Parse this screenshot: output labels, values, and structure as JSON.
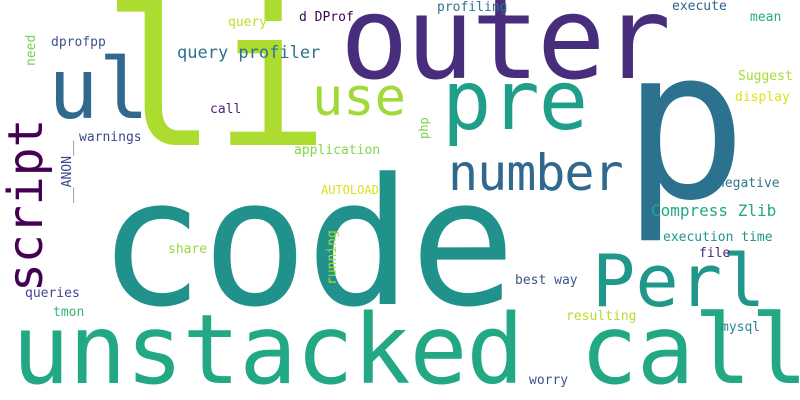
{
  "words": [
    {
      "id": "li",
      "text": "li",
      "color": "#addc30"
    },
    {
      "id": "outer",
      "text": "outer",
      "color": "#472d7b"
    },
    {
      "id": "p",
      "text": "p",
      "color": "#2c728e"
    },
    {
      "id": "code",
      "text": "code",
      "color": "#21918c"
    },
    {
      "id": "unstacked-call",
      "text": "unstacked call",
      "color": "#22a884"
    },
    {
      "id": "ul",
      "text": "ul",
      "color": "#31688e"
    },
    {
      "id": "pre",
      "text": "pre",
      "color": "#1f9e89"
    },
    {
      "id": "use",
      "text": "use",
      "color": "#a0da39"
    },
    {
      "id": "number",
      "text": "number",
      "color": "#31688e"
    },
    {
      "id": "perl",
      "text": "Perl",
      "color": "#1f988b"
    },
    {
      "id": "script",
      "text": "script",
      "color": "#440154"
    },
    {
      "id": "query-profiler",
      "text": "query profiler",
      "color": "#2c728e"
    },
    {
      "id": "compress-zlib",
      "text": "Compress Zlib",
      "color": "#22a884"
    },
    {
      "id": "query",
      "text": "query",
      "color": "#bddf26"
    },
    {
      "id": "d-dprof",
      "text": "d DProf",
      "color": "#440154"
    },
    {
      "id": "profiling",
      "text": "profiling",
      "color": "#2a788e"
    },
    {
      "id": "execute",
      "text": "execute",
      "color": "#35608d"
    },
    {
      "id": "mean",
      "text": "mean",
      "color": "#25ac82"
    },
    {
      "id": "dprofpp",
      "text": "dprofpp",
      "color": "#3b528b"
    },
    {
      "id": "need",
      "text": "need",
      "color": "#75d054"
    },
    {
      "id": "suggest",
      "text": "Suggest",
      "color": "#a5db36"
    },
    {
      "id": "display",
      "text": "display",
      "color": "#dde318"
    },
    {
      "id": "call",
      "text": "call",
      "color": "#482475"
    },
    {
      "id": "warnings",
      "text": "warnings",
      "color": "#3e4a89"
    },
    {
      "id": "php",
      "text": "php",
      "color": "#7ad151"
    },
    {
      "id": "application",
      "text": "application",
      "color": "#86d549"
    },
    {
      "id": "anon",
      "text": "__ANON__",
      "color": "#3e4989"
    },
    {
      "id": "autoload",
      "text": "AUTOLOAD",
      "color": "#d8e219"
    },
    {
      "id": "negative",
      "text": "negative",
      "color": "#2a788e"
    },
    {
      "id": "execution-time",
      "text": "execution time",
      "color": "#1f968b"
    },
    {
      "id": "share",
      "text": "share",
      "color": "#95d840"
    },
    {
      "id": "running",
      "text": "running",
      "color": "#a8db34"
    },
    {
      "id": "file",
      "text": "file",
      "color": "#482878"
    },
    {
      "id": "best-way",
      "text": "best way",
      "color": "#39568c"
    },
    {
      "id": "queries",
      "text": "queries",
      "color": "#3f4788"
    },
    {
      "id": "tmon",
      "text": "tmon",
      "color": "#35b779"
    },
    {
      "id": "resulting",
      "text": "resulting",
      "color": "#b5de2b"
    },
    {
      "id": "mysql",
      "text": "mysql",
      "color": "#23898e"
    },
    {
      "id": "worry",
      "text": "worry",
      "color": "#3b528b"
    }
  ]
}
